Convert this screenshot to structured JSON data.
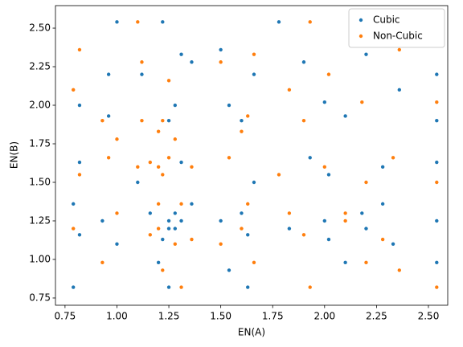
{
  "chart_data": {
    "type": "scatter",
    "x_label": "EN(A)",
    "y_label": "EN(B)",
    "xlim": [
      0.704,
      2.593
    ],
    "ylim": [
      0.703,
      2.646
    ],
    "xticks": [
      {
        "value": 0.75,
        "label": "0.75"
      },
      {
        "value": 1.0,
        "label": "1.00"
      },
      {
        "value": 1.25,
        "label": "1.25"
      },
      {
        "value": 1.5,
        "label": "1.50"
      },
      {
        "value": 1.75,
        "label": "1.75"
      },
      {
        "value": 2.0,
        "label": "2.00"
      },
      {
        "value": 2.25,
        "label": "2.25"
      },
      {
        "value": 2.5,
        "label": "2.50"
      }
    ],
    "yticks": [
      {
        "value": 0.75,
        "label": "0.75"
      },
      {
        "value": 1.0,
        "label": "1.00"
      },
      {
        "value": 1.25,
        "label": "1.25"
      },
      {
        "value": 1.5,
        "label": "1.50"
      },
      {
        "value": 1.75,
        "label": "1.75"
      },
      {
        "value": 2.0,
        "label": "2.00"
      },
      {
        "value": 2.25,
        "label": "2.25"
      },
      {
        "value": 2.5,
        "label": "2.50"
      }
    ],
    "legend": "upper right",
    "grid": false,
    "series": [
      {
        "name": "Cubic",
        "color": "#1f77b4",
        "x": [
          0.79,
          0.82,
          0.82,
          0.82,
          0.93,
          0.96,
          1.0,
          1.0,
          1.1,
          1.12,
          1.16,
          1.2,
          1.22,
          1.25,
          1.25,
          1.28,
          1.28,
          1.31,
          1.25,
          1.28,
          1.31,
          1.36,
          1.25,
          1.31,
          1.36,
          1.22,
          1.5,
          1.54,
          1.6,
          1.63,
          1.66,
          1.6,
          1.54,
          1.66,
          1.78,
          1.83,
          1.9,
          1.93,
          2.0,
          2.0,
          2.02,
          2.02,
          2.1,
          2.1,
          2.18,
          2.2,
          2.2,
          2.28,
          2.33,
          2.36,
          2.54,
          2.54,
          2.54,
          2.54,
          2.54,
          1.5,
          1.63,
          0.79,
          0.96,
          2.28
        ],
        "values": [
          0.82,
          1.16,
          1.63,
          2.0,
          1.25,
          1.93,
          2.54,
          1.1,
          1.5,
          2.2,
          1.3,
          0.98,
          2.54,
          1.2,
          1.25,
          1.3,
          1.2,
          1.25,
          1.9,
          2.0,
          2.33,
          2.28,
          0.82,
          1.63,
          1.36,
          1.13,
          1.25,
          2.0,
          1.3,
          1.16,
          2.2,
          1.9,
          0.93,
          1.5,
          2.54,
          1.2,
          2.28,
          1.66,
          1.25,
          2.02,
          1.13,
          1.55,
          1.93,
          0.98,
          1.3,
          2.33,
          1.2,
          1.6,
          1.1,
          2.1,
          1.25,
          1.9,
          0.98,
          1.63,
          2.2,
          2.36,
          0.82,
          1.36,
          2.2,
          1.36
        ]
      },
      {
        "name": "Non-Cubic",
        "color": "#ff7f0e",
        "x": [
          0.79,
          0.82,
          0.82,
          0.93,
          0.96,
          1.0,
          1.1,
          1.12,
          1.1,
          1.16,
          1.2,
          1.22,
          1.25,
          1.2,
          1.22,
          1.28,
          1.16,
          1.2,
          1.31,
          1.22,
          1.36,
          1.12,
          1.25,
          1.36,
          1.5,
          1.54,
          1.6,
          1.63,
          1.66,
          1.66,
          1.6,
          1.78,
          1.83,
          1.9,
          1.9,
          1.93,
          2.0,
          2.02,
          2.1,
          2.18,
          2.2,
          2.28,
          2.33,
          2.36,
          2.36,
          2.54,
          2.54,
          2.54,
          0.93,
          1.31,
          1.28,
          1.63,
          2.1,
          0.79,
          1.0,
          1.5,
          2.2,
          1.83,
          1.2,
          1.93
        ],
        "values": [
          1.2,
          1.55,
          2.36,
          0.98,
          1.66,
          1.3,
          1.6,
          1.9,
          2.54,
          1.63,
          1.6,
          1.55,
          1.66,
          1.83,
          1.9,
          1.78,
          1.16,
          1.2,
          0.82,
          0.93,
          1.13,
          2.28,
          2.16,
          1.6,
          1.1,
          1.66,
          1.83,
          1.36,
          2.33,
          0.98,
          1.2,
          1.55,
          2.1,
          1.9,
          1.16,
          0.82,
          1.6,
          2.2,
          1.3,
          2.02,
          1.5,
          1.13,
          1.66,
          2.36,
          0.93,
          1.5,
          0.82,
          2.02,
          1.9,
          1.36,
          1.1,
          1.93,
          1.25,
          2.1,
          1.78,
          2.28,
          0.98,
          1.3,
          1.36,
          2.54
        ]
      }
    ]
  }
}
